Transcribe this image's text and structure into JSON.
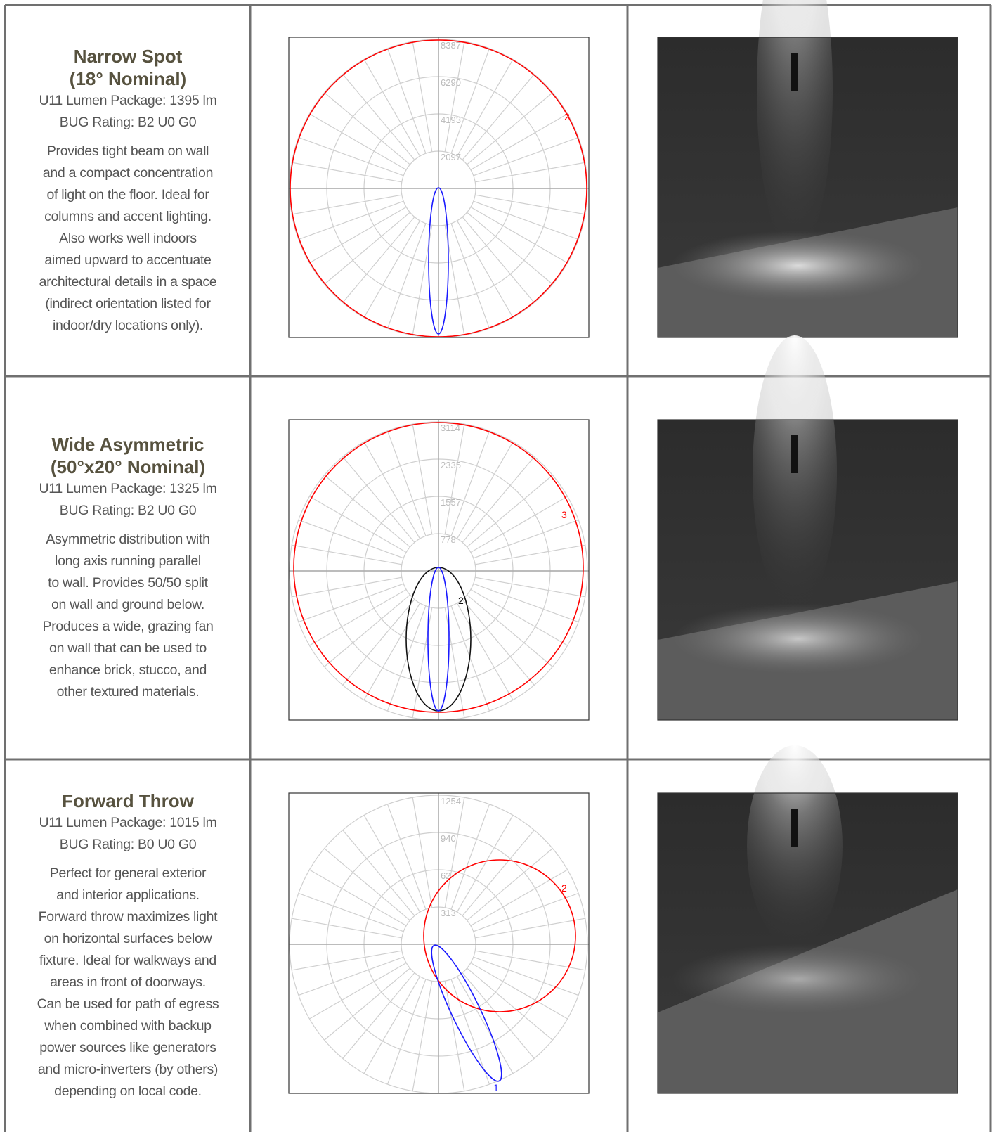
{
  "rows": [
    {
      "title": [
        "Narrow Spot",
        "(18° Nominal)"
      ],
      "lumen": "U11 Lumen Package: 1395 lm",
      "bug": "BUG Rating: B2 U0 G0",
      "description": [
        "Provides tight beam on wall",
        "and a compact concentration",
        "of light on the floor. Ideal for",
        "columns and accent lighting.",
        "Also works well indoors",
        "aimed upward to accentuate",
        "architectural details in a space",
        "(indirect orientation listed for",
        "indoor/dry locations only)."
      ],
      "polar": {
        "ticks": [
          "8387",
          "6290",
          "4193",
          "2097"
        ],
        "curve_labels": [
          "2"
        ]
      }
    },
    {
      "title": [
        "Wide Asymmetric",
        "(50°x20° Nominal)"
      ],
      "lumen": "U11 Lumen Package: 1325 lm",
      "bug": "BUG Rating: B2 U0 G0",
      "description": [
        "Asymmetric distribution with",
        "long axis running parallel",
        "to wall. Provides 50/50 split",
        "on wall and ground below.",
        "Produces a wide, grazing fan",
        "on wall that can be used to",
        "enhance brick, stucco, and",
        "other textured materials."
      ],
      "polar": {
        "ticks": [
          "3114",
          "2335",
          "1557",
          "778"
        ],
        "curve_labels": [
          "3",
          "2"
        ]
      }
    },
    {
      "title": [
        "Forward Throw"
      ],
      "lumen": "U11 Lumen Package: 1015 lm",
      "bug": "BUG Rating: B0 U0 G0",
      "description": [
        "Perfect for general exterior",
        "and interior applications.",
        "Forward throw maximizes light",
        "on horizontal surfaces below",
        "fixture. Ideal for walkways and",
        "areas in front of doorways.",
        "Can be used for path of egress",
        "when combined with backup",
        "power sources like generators",
        "and micro-inverters (by others)",
        "depending on local code."
      ],
      "polar": {
        "ticks": [
          "1254",
          "940",
          "627",
          "313"
        ],
        "curve_labels": [
          "2",
          "1"
        ]
      }
    }
  ]
}
